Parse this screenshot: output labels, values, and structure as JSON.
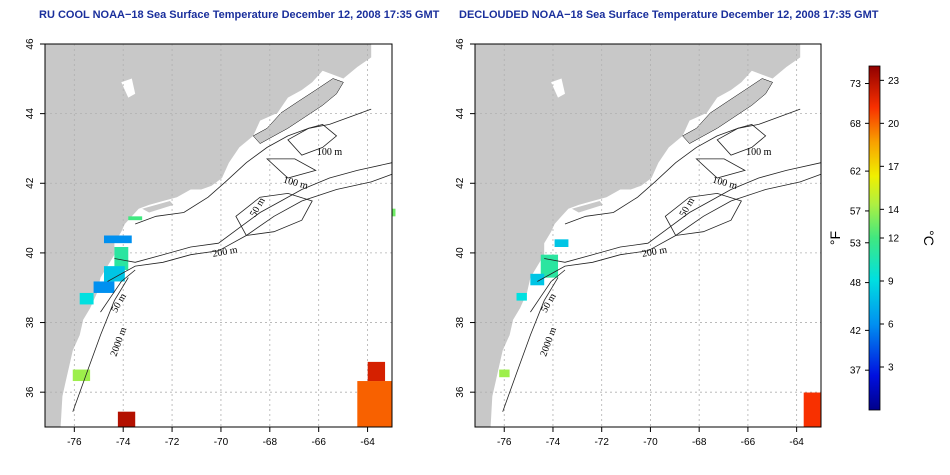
{
  "panels": [
    {
      "title": "RU COOL NOAA−18 Sea Surface Temperature December 12, 2008 17:35 GMT"
    },
    {
      "title": "DECLOUDED NOAA−18 Sea Surface Temperature December 12, 2008 17:35 GMT"
    }
  ],
  "axes": {
    "lon_ticks": [
      -76,
      -74,
      -72,
      -70,
      -68,
      -66,
      -64
    ],
    "lat_ticks": [
      36,
      38,
      40,
      42,
      44,
      46
    ],
    "lon_range": [
      -77.2,
      -63.0
    ],
    "lat_range": [
      35.0,
      46.0
    ]
  },
  "contours": [
    {
      "label": "100 m"
    },
    {
      "label": "100 m"
    },
    {
      "label": "50 m"
    },
    {
      "label": "200 m"
    },
    {
      "label": "50 m"
    },
    {
      "label": "2000 m"
    }
  ],
  "colorbar": {
    "fahrenheit_ticks": [
      "73",
      "68",
      "62",
      "57",
      "53",
      "48",
      "42",
      "37"
    ],
    "celsius_ticks": [
      "23",
      "20",
      "17",
      "14",
      "12",
      "9",
      "6",
      "3"
    ],
    "celsius_min": 0,
    "celsius_max": 24,
    "unit_f": "°F",
    "unit_c": "°C"
  },
  "colors": {
    "land": "#c8c8c8",
    "title": "#1a2f9c"
  }
}
